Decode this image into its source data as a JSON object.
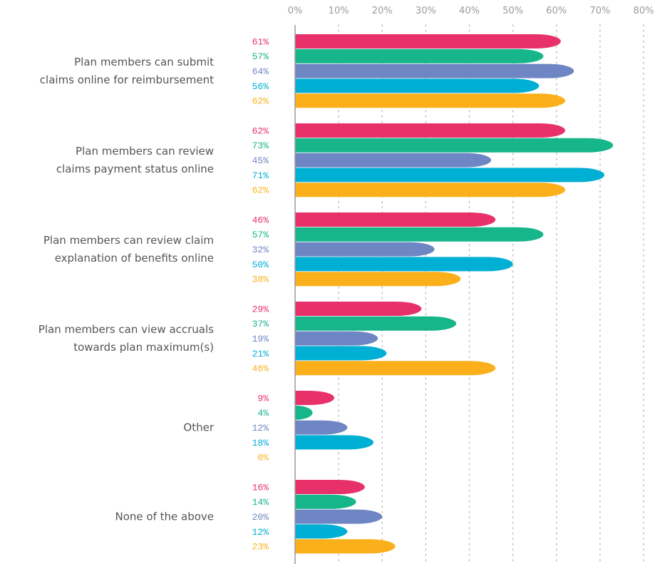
{
  "chart_data": {
    "type": "bar",
    "orientation": "horizontal",
    "categories": [
      "Plan members can submit\nclaims online for reimbursement",
      "Plan members can review\nclaims payment status online",
      "Plan members can review claim\nexplanation of benefits online",
      "Plan members can view accruals\ntowards plan maximum(s)",
      "Other",
      "None of the above"
    ],
    "series": [
      {
        "color": "#e8306a",
        "values": [
          61,
          62,
          46,
          29,
          9,
          16
        ],
        "value_labels": [
          "61%",
          "62%",
          "46%",
          "29%",
          "9%",
          "16%"
        ]
      },
      {
        "color": "#17b58a",
        "values": [
          57,
          73,
          57,
          37,
          4,
          14
        ],
        "value_labels": [
          "57%",
          "73%",
          "57%",
          "37%",
          "4%",
          "14%"
        ]
      },
      {
        "color": "#6f86c4",
        "values": [
          64,
          45,
          32,
          19,
          12,
          20
        ],
        "value_labels": [
          "64%",
          "45%",
          "32%",
          "19%",
          "12%",
          "20%"
        ]
      },
      {
        "color": "#00afd4",
        "values": [
          56,
          71,
          50,
          21,
          18,
          12
        ],
        "value_labels": [
          "56%",
          "71%",
          "50%",
          "21%",
          "18%",
          "12%"
        ]
      },
      {
        "color": "#fbb01b",
        "values": [
          62,
          62,
          38,
          46,
          0,
          23
        ],
        "value_labels": [
          "62%",
          "62%",
          "38%",
          "46%",
          "0%",
          "23%"
        ]
      }
    ],
    "xlim": [
      0,
      80
    ],
    "xticks": [
      {
        "value": 0,
        "label": "0%"
      },
      {
        "value": 10,
        "label": "10%"
      },
      {
        "value": 20,
        "label": "20%"
      },
      {
        "value": 30,
        "label": "30%"
      },
      {
        "value": 40,
        "label": "40%"
      },
      {
        "value": 50,
        "label": "50%"
      },
      {
        "value": 60,
        "label": "60%"
      },
      {
        "value": 70,
        "label": "70%"
      },
      {
        "value": 80,
        "label": "80%"
      }
    ],
    "grid": true
  }
}
